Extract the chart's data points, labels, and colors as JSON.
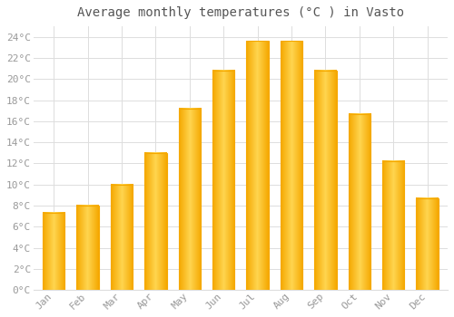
{
  "title": "Average monthly temperatures (°C ) in Vasto",
  "months": [
    "Jan",
    "Feb",
    "Mar",
    "Apr",
    "May",
    "Jun",
    "Jul",
    "Aug",
    "Sep",
    "Oct",
    "Nov",
    "Dec"
  ],
  "values": [
    7.3,
    8.0,
    10.0,
    13.0,
    17.2,
    20.8,
    23.6,
    23.6,
    20.8,
    16.7,
    12.2,
    8.7
  ],
  "bar_color_center": "#FFD54F",
  "bar_color_edge": "#F5A800",
  "background_color": "#ffffff",
  "grid_color": "#dddddd",
  "ylim": [
    0,
    25
  ],
  "yticks": [
    0,
    2,
    4,
    6,
    8,
    10,
    12,
    14,
    16,
    18,
    20,
    22,
    24
  ],
  "title_fontsize": 10,
  "tick_fontsize": 8,
  "tick_color": "#999999",
  "title_color": "#555555",
  "font_family": "monospace",
  "bar_width": 0.65
}
